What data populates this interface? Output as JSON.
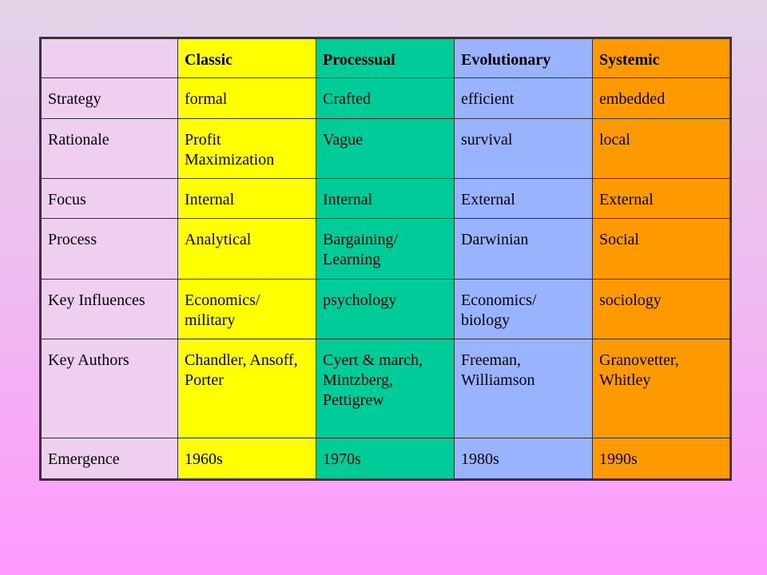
{
  "colors": {
    "label": "#eecff0",
    "classic": "#ffff00",
    "processual": "#00cc99",
    "evolutionary": "#99b3ff",
    "systemic": "#ff9900",
    "border": "#333333"
  },
  "table": {
    "columns": [
      {
        "key": "classic",
        "label": "Classic"
      },
      {
        "key": "processual",
        "label": "Processual"
      },
      {
        "key": "evolutionary",
        "label": "Evolutionary"
      },
      {
        "key": "systemic",
        "label": "Systemic"
      }
    ],
    "rows": [
      {
        "label": "Strategy",
        "cells": [
          "formal",
          "Crafted",
          "efficient",
          "embedded"
        ]
      },
      {
        "label": "Rationale",
        "cells": [
          "Profit Maximization",
          "Vague",
          "survival",
          "local"
        ]
      },
      {
        "label": "Focus",
        "cells": [
          "Internal",
          "Internal",
          "External",
          "External"
        ]
      },
      {
        "label": "Process",
        "cells": [
          "Analytical",
          "Bargaining/ Learning",
          "Darwinian",
          "Social"
        ]
      },
      {
        "label": "Key Influences",
        "cells": [
          "Economics/ military",
          "psychology",
          "Economics/ biology",
          "sociology"
        ]
      },
      {
        "label": "Key Authors",
        "cells": [
          "Chandler, Ansoff, Porter",
          "Cyert & march, Mintzberg, Pettigrew",
          "Freeman, Williamson",
          "Granovetter, Whitley"
        ]
      },
      {
        "label": "Emergence",
        "cells": [
          "1960s",
          "1970s",
          "1980s",
          "1990s"
        ]
      }
    ]
  }
}
